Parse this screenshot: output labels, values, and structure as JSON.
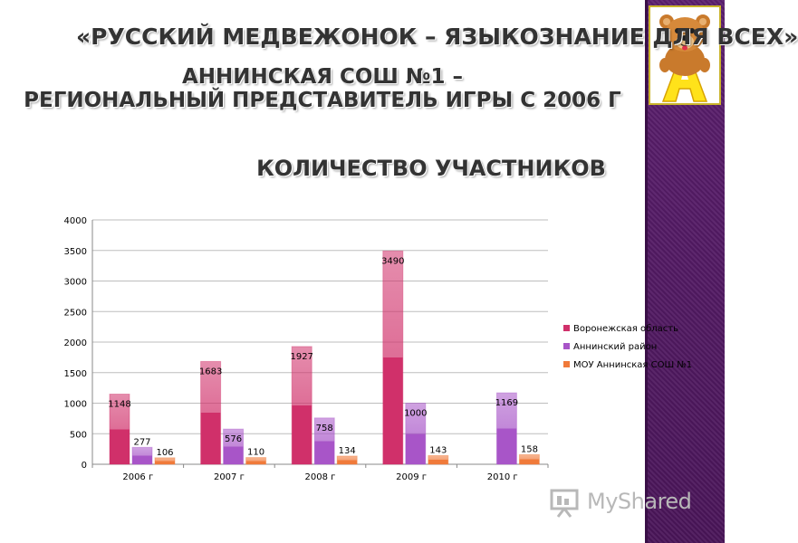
{
  "header": {
    "line1": "«РУССКИЙ МЕДВЕЖОНОК – ЯЗЫКОЗНАНИЕ ДЛЯ ВСЕХ»",
    "line2": "АННИНСКАЯ СОШ №1 –",
    "line3": "РЕГИОНАЛЬНЫЙ ПРЕДСТАВИТЕЛЬ ИГРЫ С 2006 Г",
    "line4": "КОЛИЧЕСТВО УЧАСТНИКОВ"
  },
  "brand": {
    "text": "MyShared"
  },
  "colors": {
    "sidebar": "#4a1559",
    "series": [
      "#d0306a",
      "#a855c8",
      "#f07a3a"
    ]
  },
  "logo": {
    "icon": "bear-holding-letter-A"
  },
  "chart_data": {
    "type": "bar",
    "categories": [
      "2006 г",
      "2007 г",
      "2008 г",
      "2009 г",
      "2010 г"
    ],
    "series": [
      {
        "name": "Воронежская область",
        "values": [
          1148,
          1683,
          1927,
          3490,
          null
        ]
      },
      {
        "name": "Аннинский район",
        "values": [
          277,
          576,
          758,
          1000,
          1169
        ]
      },
      {
        "name": "МОУ Аннинская СОШ №1",
        "values": [
          106,
          110,
          134,
          143,
          158
        ]
      }
    ],
    "ylim": [
      0,
      4000
    ],
    "yticks": [
      "0",
      "500",
      "1000",
      "1500",
      "2000",
      "2500",
      "3000",
      "3500",
      "4000"
    ],
    "grid": true,
    "legend": "right"
  }
}
